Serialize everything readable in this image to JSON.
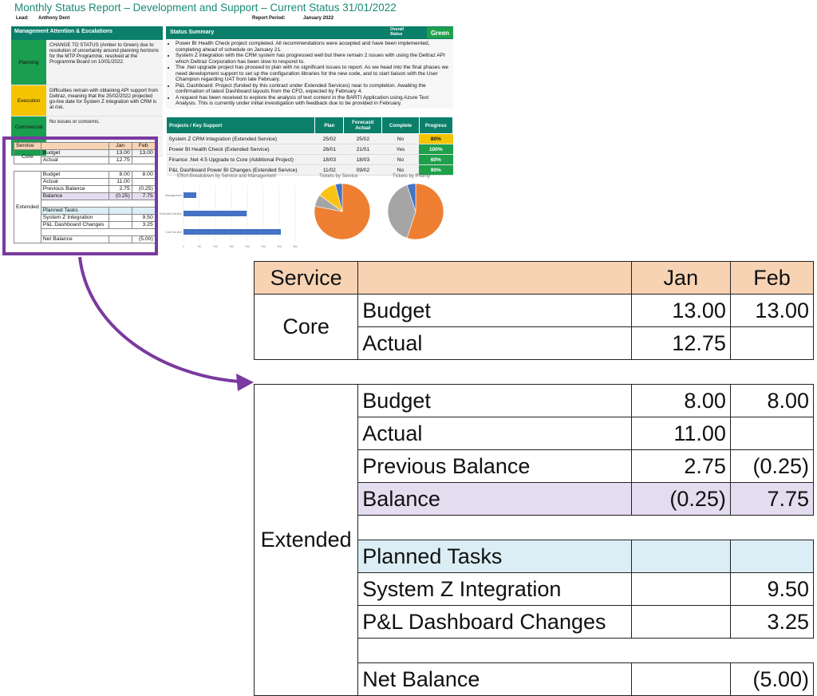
{
  "title": "Monthly Status Report – Development and Support – Current Status 31/01/2022",
  "meta": {
    "lead_label": "Lead:",
    "lead": "Anthony Dent",
    "period_label": "Report Period:",
    "period": "January 2022"
  },
  "mgmt": {
    "heading": "Management Attention &  Escalations",
    "rows": [
      {
        "label": "Planning",
        "color": "#1a9e4f",
        "text": "CHANGE TO STATUS (Amber to Green) due to resolution of uncertainty around planning horizons for the MTP Programme, resolved at the Programme Board on 10/01/2022."
      },
      {
        "label": "Execution",
        "color": "#f5c400",
        "text": "Difficulties remain with obtaining API support from Deltraz, meaning that the 25/02/2022 projected go-live date for System Z integration with CRM is at risk."
      },
      {
        "label": "Commercial",
        "color": "#1a9e4f",
        "text": "No issues or concerns."
      },
      {
        "label": "SLAs",
        "color": "#1a9e4f",
        "text": "All SLAs met or exceeded."
      }
    ]
  },
  "status": {
    "heading": "Status Summary",
    "overall_label": "Overall Status",
    "overall": "Green",
    "bullets": [
      "Power BI Health Check project completed. All recommendations were accepted and have been implemented, completing ahead of schedule on January 21.",
      "System Z integration with the CRM system has progressed well but there remain 2 issues with using the Deltraz API which Deltraz Corporation has been slow to respond to.",
      "The .Net upgrade project has proceed to plan with no significant issues to report. As we head into the final phases we need development support to set up the configuration libraries for the new code, and to start liaison with the User Champion regarding UAT from late February.",
      "P&L Dashboard: Project (funded by this contract under Extended Services) near to completion. Awaiting the confirmation of latest Dashboard layouts from the CFO, expected by February 4.",
      "A request has been received to explore the analysis of text content in the BARTI Application using Azure Text Analysis. This is currently under initial investigation with feedback due to be provided in February."
    ]
  },
  "projects": {
    "headers": [
      "Projects / Key Support",
      "Plan",
      "Forecast/ Actual",
      "Complete",
      "Progress"
    ],
    "rows": [
      {
        "name": "System Z CRM Integration (Extended Service)",
        "plan": "25/02",
        "forecast": "25/02",
        "complete": "No",
        "progress": "80%",
        "color": "#f5c400"
      },
      {
        "name": "Power BI Health Check (Extended Service)",
        "plan": "28/01",
        "forecast": "21/01",
        "complete": "Yes",
        "progress": "100%",
        "color": "#1ea04a"
      },
      {
        "name": "Finance .Net 4.5 Upgrade to Core (Additional Project)",
        "plan": "18/03",
        "forecast": "18/03",
        "complete": "No",
        "progress": "60%",
        "color": "#1ea04a"
      },
      {
        "name": "P&L Dashboard Power BI Changes (Extended Service)",
        "plan": "11/02",
        "forecast": "09/02",
        "complete": "No",
        "progress": "90%",
        "color": "#1ea04a"
      }
    ]
  },
  "charts": {
    "effort_title": "Effort Breakdown by Service and Management",
    "service_title": "Tickets by Service",
    "priority_title": "Tickets by Priority"
  },
  "chart_data": [
    {
      "type": "bar",
      "title": "Effort Breakdown by Service and Management",
      "categories": [
        "Management",
        "Extended Service",
        "Core Service"
      ],
      "values": [
        40,
        198,
        305
      ],
      "xlim": [
        0,
        350
      ],
      "xticks": [
        "0",
        "50",
        "100",
        "150",
        "200",
        "250",
        "300",
        "350"
      ]
    },
    {
      "type": "pie",
      "title": "Tickets by Service",
      "values": [
        78,
        7,
        11,
        4
      ],
      "colors": [
        "#ee7f32",
        "#a5a5a5",
        "#f8c314",
        "#4472c4"
      ]
    },
    {
      "type": "pie",
      "title": "Tickets by Priority",
      "values": [
        55,
        40,
        5
      ],
      "colors": [
        "#ee7f32",
        "#a5a5a5",
        "#4472c4"
      ]
    }
  ],
  "balance": {
    "headers": [
      "Service",
      "",
      "Jan",
      "Feb"
    ],
    "core_label": "Core",
    "extended_label": "Extended",
    "core": [
      {
        "item": "Budget",
        "jan": "13.00",
        "feb": "13.00"
      },
      {
        "item": "Actual",
        "jan": "12.75",
        "feb": ""
      }
    ],
    "extended": [
      {
        "item": "Budget",
        "jan": "8.00",
        "feb": "8.00"
      },
      {
        "item": "Actual",
        "jan": "11.00",
        "feb": ""
      },
      {
        "item": "Previous Balance",
        "jan": "2.75",
        "feb": "(0.25)"
      },
      {
        "item": "Balance",
        "jan": "(0.25)",
        "feb": "7.75"
      }
    ],
    "planned_label": "Planned Tasks",
    "tasks": [
      {
        "item": "System Z Integration",
        "jan": "",
        "feb": "9.50"
      },
      {
        "item": "P&L Dashboard Changes",
        "jan": "",
        "feb": "3.25"
      }
    ],
    "net": {
      "item": "Net Balance",
      "jan": "",
      "feb": "(5.00)"
    }
  }
}
